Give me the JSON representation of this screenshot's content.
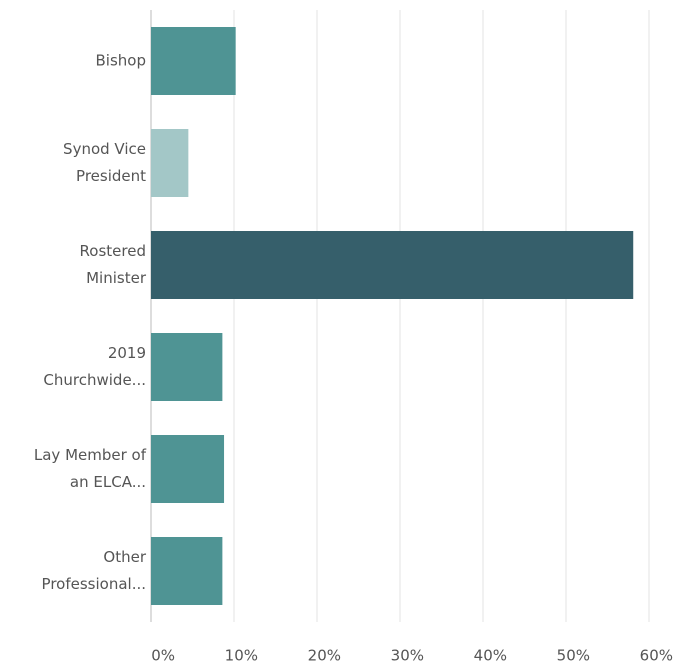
{
  "chart_data": {
    "type": "bar",
    "orientation": "horizontal",
    "categories": [
      [
        "Bishop"
      ],
      [
        "Synod Vice",
        "President"
      ],
      [
        "Rostered",
        "Minister"
      ],
      [
        "2019",
        "Churchwide..."
      ],
      [
        "Lay Member of",
        "an ELCA..."
      ],
      [
        "Other",
        "Professional..."
      ]
    ],
    "values": [
      10.2,
      4.5,
      58.1,
      8.6,
      8.8,
      8.6
    ],
    "colors": [
      "#4f9494",
      "#a3c7c7",
      "#365f6b",
      "#4f9494",
      "#4f9494",
      "#4f9494"
    ],
    "xlim": [
      0,
      65
    ],
    "xticks": [
      {
        "value": 0,
        "label": "0%"
      },
      {
        "value": 10,
        "label": "10%"
      },
      {
        "value": 20,
        "label": "20%"
      },
      {
        "value": 30,
        "label": "30%"
      },
      {
        "value": 40,
        "label": "40%"
      },
      {
        "value": 50,
        "label": "50%"
      },
      {
        "value": 60,
        "label": "60%"
      }
    ],
    "grid": true
  }
}
